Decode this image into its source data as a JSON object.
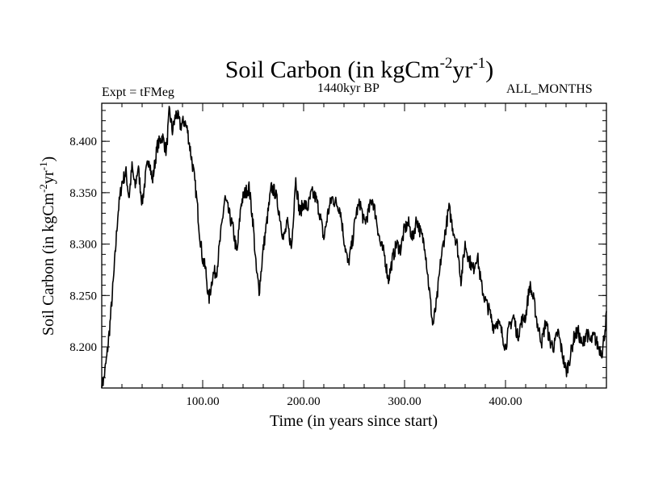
{
  "chart_data": {
    "type": "line",
    "title": {
      "text": "Soil Carbon (in kgCm",
      "sup1": "-2",
      "mid": "yr",
      "sup2": "-1",
      "end": ")"
    },
    "subtitle_left": "Expt = tFMeg",
    "subtitle_center": "1440kyr BP",
    "subtitle_right": "ALL_MONTHS",
    "xlabel": "Time (in years since start)",
    "ylabel": {
      "text": "Soil Carbon (in kgCm",
      "sup1": "-2",
      "mid": "yr",
      "sup2": "-1",
      "end": ")"
    },
    "xlim": [
      0,
      500
    ],
    "ylim": [
      8.16,
      8.437
    ],
    "xticks": [
      {
        "value": 100,
        "label": "100.00"
      },
      {
        "value": 200,
        "label": "200.00"
      },
      {
        "value": 300,
        "label": "300.00"
      },
      {
        "value": 400,
        "label": "400.00"
      }
    ],
    "yticks": [
      {
        "value": 8.2,
        "label": "8.200"
      },
      {
        "value": 8.25,
        "label": "8.250"
      },
      {
        "value": 8.3,
        "label": "8.300"
      },
      {
        "value": 8.35,
        "label": "8.350"
      },
      {
        "value": 8.4,
        "label": "8.400"
      }
    ],
    "grid": false,
    "line_color": "#000000",
    "series": [
      {
        "x": [
          0,
          2,
          5,
          8,
          12,
          16,
          20,
          24,
          27,
          30,
          33,
          36,
          40,
          44,
          47,
          50,
          55,
          60,
          64,
          67,
          70,
          74,
          78,
          82,
          85,
          88,
          91,
          94,
          97,
          100,
          103,
          106,
          110,
          114,
          118,
          122,
          126,
          130,
          134,
          138,
          142,
          146,
          150,
          153,
          156,
          160,
          164,
          168,
          172,
          176,
          180,
          184,
          188,
          192,
          196,
          200,
          204,
          208,
          212,
          216,
          220,
          224,
          228,
          232,
          236,
          240,
          244,
          248,
          252,
          256,
          260,
          264,
          268,
          272,
          276,
          280,
          284,
          288,
          292,
          296,
          300,
          304,
          308,
          312,
          316,
          320,
          324,
          328,
          332,
          336,
          340,
          344,
          348,
          352,
          356,
          360,
          364,
          368,
          372,
          376,
          380,
          384,
          388,
          392,
          396,
          400,
          404,
          408,
          412,
          416,
          420,
          424,
          428,
          432,
          436,
          440,
          444,
          448,
          452,
          456,
          460,
          464,
          468,
          472,
          476,
          480,
          484,
          488,
          492,
          496,
          500
        ],
        "y": [
          8.163,
          8.168,
          8.19,
          8.22,
          8.27,
          8.33,
          8.36,
          8.37,
          8.345,
          8.375,
          8.355,
          8.375,
          8.34,
          8.37,
          8.385,
          8.36,
          8.395,
          8.405,
          8.39,
          8.43,
          8.41,
          8.428,
          8.415,
          8.42,
          8.41,
          8.39,
          8.37,
          8.345,
          8.31,
          8.285,
          8.275,
          8.245,
          8.27,
          8.275,
          8.31,
          8.345,
          8.33,
          8.315,
          8.29,
          8.34,
          8.35,
          8.355,
          8.32,
          8.275,
          8.255,
          8.295,
          8.325,
          8.355,
          8.35,
          8.33,
          8.305,
          8.32,
          8.295,
          8.365,
          8.33,
          8.34,
          8.335,
          8.35,
          8.345,
          8.33,
          8.305,
          8.33,
          8.345,
          8.34,
          8.335,
          8.305,
          8.28,
          8.3,
          8.33,
          8.34,
          8.32,
          8.33,
          8.345,
          8.325,
          8.3,
          8.29,
          8.265,
          8.285,
          8.3,
          8.295,
          8.315,
          8.32,
          8.305,
          8.325,
          8.31,
          8.3,
          8.26,
          8.22,
          8.245,
          8.285,
          8.31,
          8.335,
          8.315,
          8.3,
          8.265,
          8.3,
          8.285,
          8.275,
          8.29,
          8.26,
          8.245,
          8.235,
          8.22,
          8.225,
          8.215,
          8.2,
          8.22,
          8.23,
          8.21,
          8.225,
          8.23,
          8.26,
          8.245,
          8.22,
          8.205,
          8.225,
          8.205,
          8.2,
          8.215,
          8.195,
          8.175,
          8.19,
          8.21,
          8.215,
          8.2,
          8.215,
          8.205,
          8.21,
          8.2,
          8.195,
          8.23
        ]
      }
    ]
  }
}
